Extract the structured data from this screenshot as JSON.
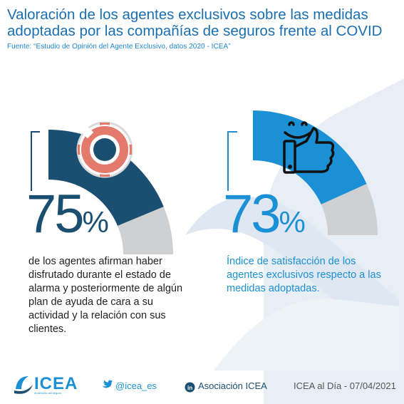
{
  "header": {
    "title": "Valoración de los agentes exclusivos sobre las medidas adoptadas por las compañías de seguros frente al COVID",
    "source": "Fuente: “Estudio de Opinión del Agente Exclusivo, datos 2020 - ICEA”"
  },
  "left_stat": {
    "value_number": "75",
    "value_unit": "%",
    "gauge_fraction": 0.75,
    "description": "de los agentes afirman haber disfrutado durante el estado de alarma y posteriormente de algún plan de ayuda de cara a su actividad y la relación con sus clientes.",
    "icon": "lifebuoy-icon",
    "color": "#1b4f72"
  },
  "right_stat": {
    "value_number": "73",
    "value_unit": "%",
    "gauge_fraction": 0.73,
    "description": "Índice de satisfacción de los agentes exclusivos respecto a las medidas adoptadas.",
    "icon": "thumbs-up-smile-icon",
    "color": "#1b90d4"
  },
  "footer": {
    "logo_text": "ICEA",
    "logo_tagline": "Al servicio del seguro",
    "twitter": "@icea_es",
    "linkedin": "Asociación ICEA",
    "date": "ICEA al Día - 07/04/2021"
  },
  "colors": {
    "dark_blue": "#1b4f72",
    "light_blue": "#1b90d4",
    "gray": "#cfd0d2",
    "lifebuoy_red": "#e37a6c",
    "watermark": "#e6edf5"
  }
}
